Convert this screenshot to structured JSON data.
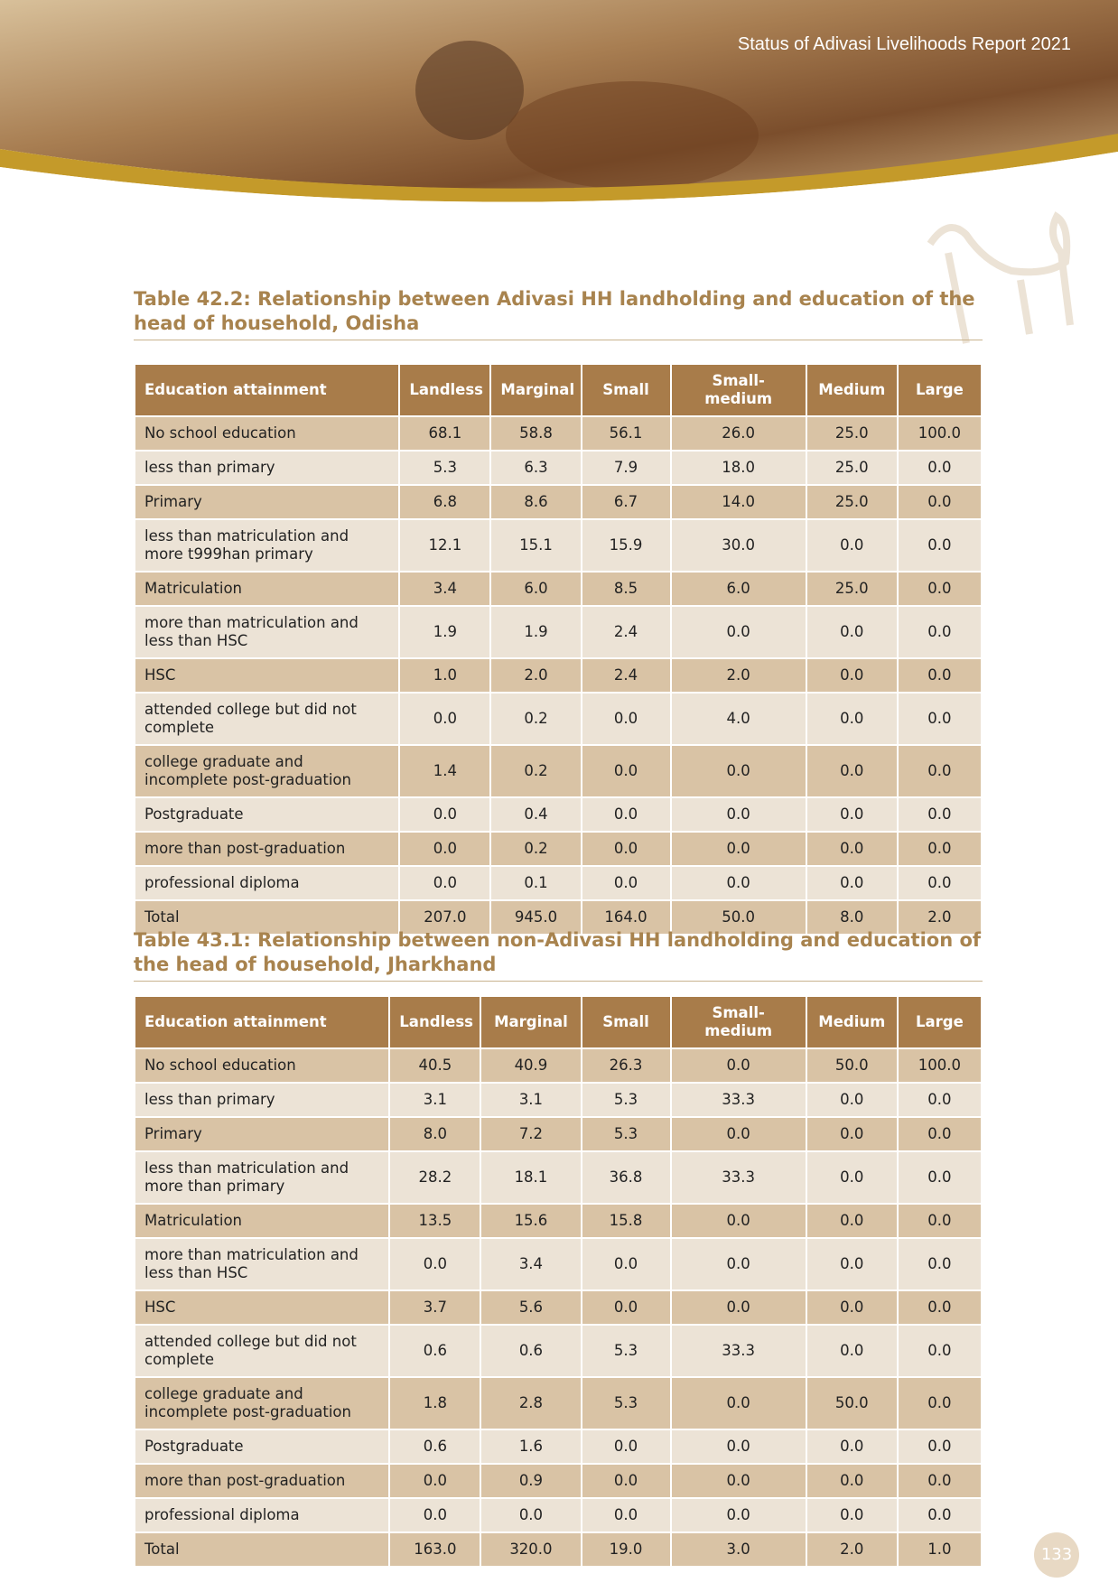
{
  "header": {
    "title": "Status of Adivasi Livelihoods Report 2021"
  },
  "tables": [
    {
      "title": "Table 42.2: Relationship between Adivasi HH landholding and education of the head of household, Odisha",
      "columns": [
        "Education attainment",
        "Landless",
        "Marginal",
        "Small",
        "Small-medium",
        "Medium",
        "Large"
      ],
      "rows": [
        [
          "No school education",
          "68.1",
          "58.8",
          "56.1",
          "26.0",
          "25.0",
          "100.0"
        ],
        [
          "less than primary",
          "5.3",
          "6.3",
          "7.9",
          "18.0",
          "25.0",
          "0.0"
        ],
        [
          "Primary",
          "6.8",
          "8.6",
          "6.7",
          "14.0",
          "25.0",
          "0.0"
        ],
        [
          "less than matriculation and more t999han primary",
          "12.1",
          "15.1",
          "15.9",
          "30.0",
          "0.0",
          "0.0"
        ],
        [
          "Matriculation",
          "3.4",
          "6.0",
          "8.5",
          "6.0",
          "25.0",
          "0.0"
        ],
        [
          "more than matriculation and less than HSC",
          "1.9",
          "1.9",
          "2.4",
          "0.0",
          "0.0",
          "0.0"
        ],
        [
          "HSC",
          "1.0",
          "2.0",
          "2.4",
          "2.0",
          "0.0",
          "0.0"
        ],
        [
          "attended college but did not complete",
          "0.0",
          "0.2",
          "0.0",
          "4.0",
          "0.0",
          "0.0"
        ],
        [
          "college graduate and incomplete post-graduation",
          "1.4",
          "0.2",
          "0.0",
          "0.0",
          "0.0",
          "0.0"
        ],
        [
          "Postgraduate",
          "0.0",
          "0.4",
          "0.0",
          "0.0",
          "0.0",
          "0.0"
        ],
        [
          "more than post-graduation",
          "0.0",
          "0.2",
          "0.0",
          "0.0",
          "0.0",
          "0.0"
        ],
        [
          "professional diploma",
          "0.0",
          "0.1",
          "0.0",
          "0.0",
          "0.0",
          "0.0"
        ],
        [
          "Total",
          "207.0",
          "945.0",
          "164.0",
          "50.0",
          "8.0",
          "2.0"
        ]
      ]
    },
    {
      "title": "Table 43.1: Relationship between non-Adivasi HH landholding and education of the head of household, Jharkhand",
      "columns": [
        "Education attainment",
        "Landless",
        "Marginal",
        "Small",
        "Small-medium",
        "Medium",
        "Large"
      ],
      "rows": [
        [
          "No school education",
          "40.5",
          "40.9",
          "26.3",
          "0.0",
          "50.0",
          "100.0"
        ],
        [
          "less than primary",
          "3.1",
          "3.1",
          "5.3",
          "33.3",
          "0.0",
          "0.0"
        ],
        [
          "Primary",
          "8.0",
          "7.2",
          "5.3",
          "0.0",
          "0.0",
          "0.0"
        ],
        [
          "less than matriculation and more than primary",
          "28.2",
          "18.1",
          "36.8",
          "33.3",
          "0.0",
          "0.0"
        ],
        [
          "Matriculation",
          "13.5",
          "15.6",
          "15.8",
          "0.0",
          "0.0",
          "0.0"
        ],
        [
          "more than matriculation and less than HSC",
          "0.0",
          "3.4",
          "0.0",
          "0.0",
          "0.0",
          "0.0"
        ],
        [
          "HSC",
          "3.7",
          "5.6",
          "0.0",
          "0.0",
          "0.0",
          "0.0"
        ],
        [
          "attended college but did not complete",
          "0.6",
          "0.6",
          "5.3",
          "33.3",
          "0.0",
          "0.0"
        ],
        [
          "college graduate and incomplete post-graduation",
          "1.8",
          "2.8",
          "5.3",
          "0.0",
          "50.0",
          "0.0"
        ],
        [
          "Postgraduate",
          "0.6",
          "1.6",
          "0.0",
          "0.0",
          "0.0",
          "0.0"
        ],
        [
          "more than post-graduation",
          "0.0",
          "0.9",
          "0.0",
          "0.0",
          "0.0",
          "0.0"
        ],
        [
          "professional diploma",
          "0.0",
          "0.0",
          "0.0",
          "0.0",
          "0.0",
          "0.0"
        ],
        [
          "Total",
          "163.0",
          "320.0",
          "19.0",
          "3.0",
          "2.0",
          "1.0"
        ]
      ]
    }
  ],
  "page_number": "133"
}
